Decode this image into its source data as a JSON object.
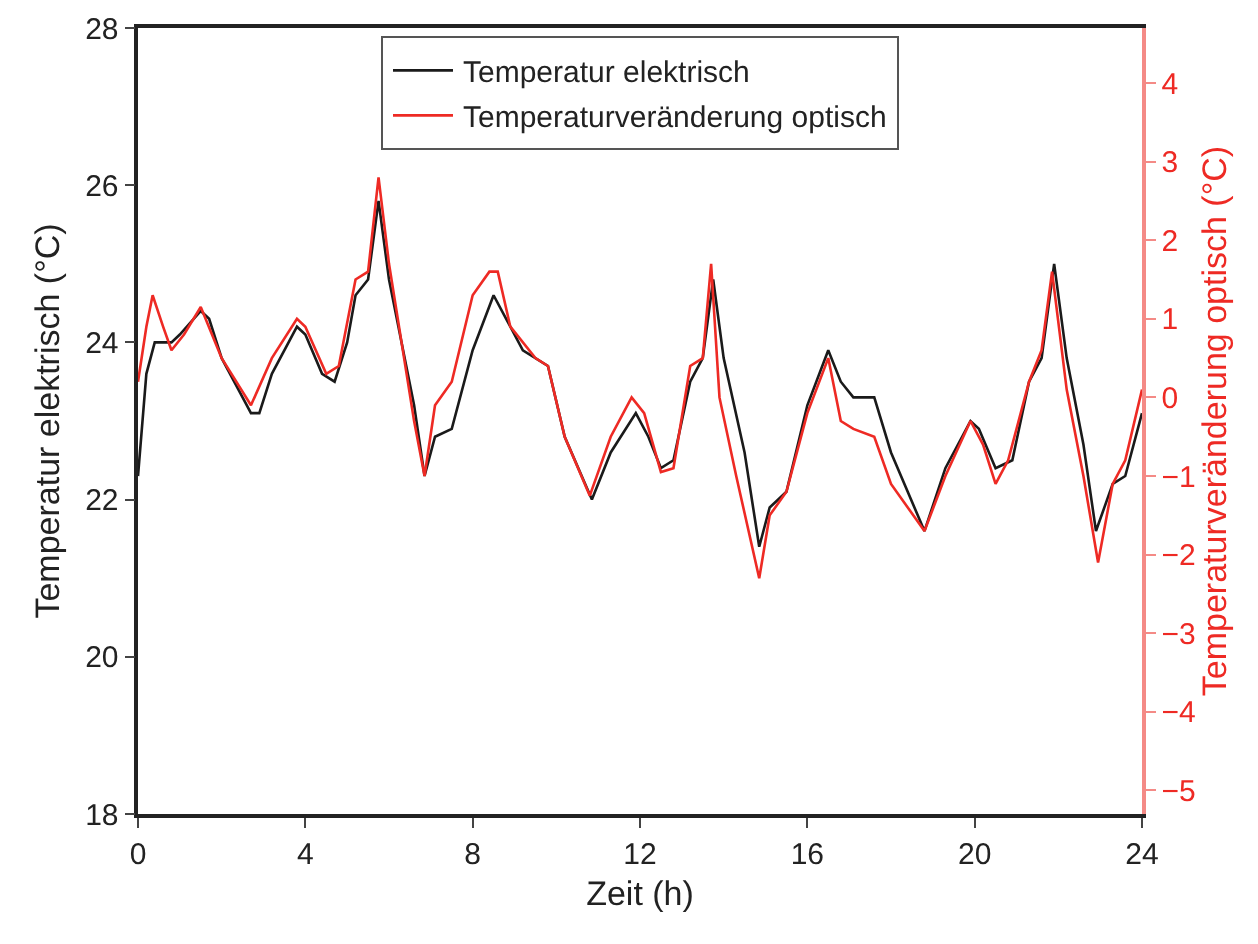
{
  "chart_data": {
    "type": "line",
    "xlabel": "Zeit (h)",
    "ylabel": "Temperatur elektrisch (°C)",
    "y2label": "Temperaturveränderung optisch (°C)",
    "xlim": [
      0,
      24
    ],
    "xticks": [
      0,
      4,
      8,
      12,
      16,
      20,
      24
    ],
    "ylim": [
      18,
      28
    ],
    "yticks": [
      18,
      20,
      22,
      24,
      26,
      28
    ],
    "y2lim": [
      -5.3,
      4.7
    ],
    "y2ticks": [
      -5,
      -4,
      -3,
      -2,
      -1,
      0,
      1,
      2,
      3,
      4
    ],
    "grid": false,
    "legend": "top",
    "marker": "none",
    "line_style": "solid",
    "series": [
      {
        "name": "Temperatur elektrisch",
        "color": "#1a1a1a",
        "x": [
          0,
          0.2,
          0.4,
          0.8,
          1.0,
          1.5,
          1.7,
          2.0,
          2.5,
          2.7,
          2.9,
          3.2,
          3.8,
          4.0,
          4.4,
          4.7,
          5.0,
          5.2,
          5.5,
          5.75,
          6.0,
          6.3,
          6.6,
          6.85,
          7.1,
          7.5,
          8.0,
          8.5,
          8.8,
          9.2,
          9.8,
          10.2,
          10.85,
          11.3,
          11.9,
          12.2,
          12.5,
          12.8,
          13.2,
          13.5,
          13.75,
          14.0,
          14.5,
          14.85,
          15.1,
          15.5,
          16.0,
          16.5,
          16.8,
          17.1,
          17.6,
          18.0,
          18.8,
          19.3,
          19.9,
          20.1,
          20.5,
          20.9,
          21.3,
          21.6,
          21.9,
          22.2,
          22.6,
          22.9,
          23.3,
          23.6,
          24.0
        ],
        "values": [
          22.3,
          23.6,
          24.0,
          24.0,
          24.1,
          24.4,
          24.3,
          23.8,
          23.3,
          23.1,
          23.1,
          23.6,
          24.2,
          24.1,
          23.6,
          23.5,
          24.0,
          24.6,
          24.8,
          25.8,
          24.8,
          24.0,
          23.2,
          22.3,
          22.8,
          22.9,
          23.9,
          24.6,
          24.3,
          23.9,
          23.7,
          22.8,
          22.0,
          22.6,
          23.1,
          22.8,
          22.4,
          22.5,
          23.5,
          23.8,
          24.8,
          23.8,
          22.6,
          21.4,
          21.9,
          22.1,
          23.2,
          23.9,
          23.5,
          23.3,
          23.3,
          22.6,
          21.6,
          22.4,
          23.0,
          22.9,
          22.4,
          22.5,
          23.5,
          23.8,
          25.0,
          23.8,
          22.7,
          21.6,
          22.2,
          22.3,
          23.1
        ]
      },
      {
        "name": "Temperaturveränderung optisch",
        "color": "#ee2a24",
        "axis": "y2",
        "x": [
          0,
          0.2,
          0.35,
          0.6,
          0.8,
          1.1,
          1.5,
          2.0,
          2.7,
          3.2,
          3.8,
          4.0,
          4.5,
          4.8,
          5.2,
          5.5,
          5.75,
          6.0,
          6.3,
          6.6,
          6.85,
          7.1,
          7.5,
          8.0,
          8.4,
          8.6,
          8.9,
          9.5,
          9.8,
          10.2,
          10.8,
          11.3,
          11.8,
          12.1,
          12.5,
          12.8,
          13.2,
          13.5,
          13.7,
          13.9,
          14.3,
          14.85,
          15.1,
          15.5,
          16.0,
          16.5,
          16.8,
          17.1,
          17.6,
          18.0,
          18.8,
          19.3,
          19.9,
          20.2,
          20.5,
          20.8,
          21.3,
          21.6,
          21.85,
          22.2,
          22.6,
          22.95,
          23.3,
          23.6,
          24.0
        ],
        "values": [
          0.2,
          0.9,
          1.3,
          0.9,
          0.6,
          0.8,
          1.15,
          0.5,
          -0.1,
          0.5,
          1.0,
          0.9,
          0.3,
          0.4,
          1.5,
          1.6,
          2.8,
          1.7,
          0.7,
          -0.3,
          -1.0,
          -0.1,
          0.2,
          1.3,
          1.6,
          1.6,
          0.9,
          0.5,
          0.4,
          -0.5,
          -1.25,
          -0.5,
          0.0,
          -0.2,
          -0.95,
          -0.9,
          0.4,
          0.5,
          1.7,
          0.0,
          -1.0,
          -2.3,
          -1.5,
          -1.2,
          -0.2,
          0.5,
          -0.3,
          -0.4,
          -0.5,
          -1.1,
          -1.7,
          -1.0,
          -0.3,
          -0.6,
          -1.1,
          -0.8,
          0.2,
          0.6,
          1.6,
          0.1,
          -1.0,
          -2.1,
          -1.1,
          -0.8,
          0.1
        ]
      }
    ]
  }
}
